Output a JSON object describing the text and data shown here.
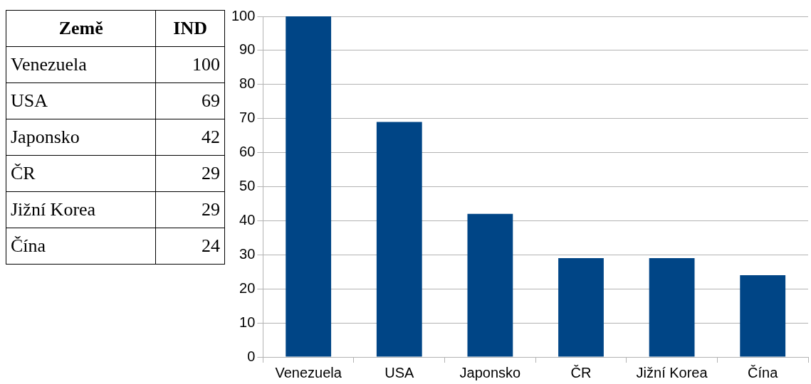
{
  "chart_data": [
    {
      "type": "other",
      "annotations": [
        "Země",
        "IND"
      ],
      "categories": [
        "Venezuela",
        "USA",
        "Japonsko",
        "ČR",
        "Jižní Korea",
        "Čína"
      ],
      "values": [
        100,
        69,
        42,
        29,
        29,
        24
      ],
      "data_labels": true
    },
    {
      "type": "bar",
      "categories": [
        "Venezuela",
        "USA",
        "Japonsko",
        "ČR",
        "Jižní Korea",
        "Čína"
      ],
      "values": [
        100,
        69,
        42,
        29,
        29,
        24
      ],
      "color": "#004586",
      "ylim": [
        0,
        100
      ],
      "yticks": [
        0,
        10,
        20,
        30,
        40,
        50,
        60,
        70,
        80,
        90,
        100
      ],
      "grid": "y"
    }
  ]
}
